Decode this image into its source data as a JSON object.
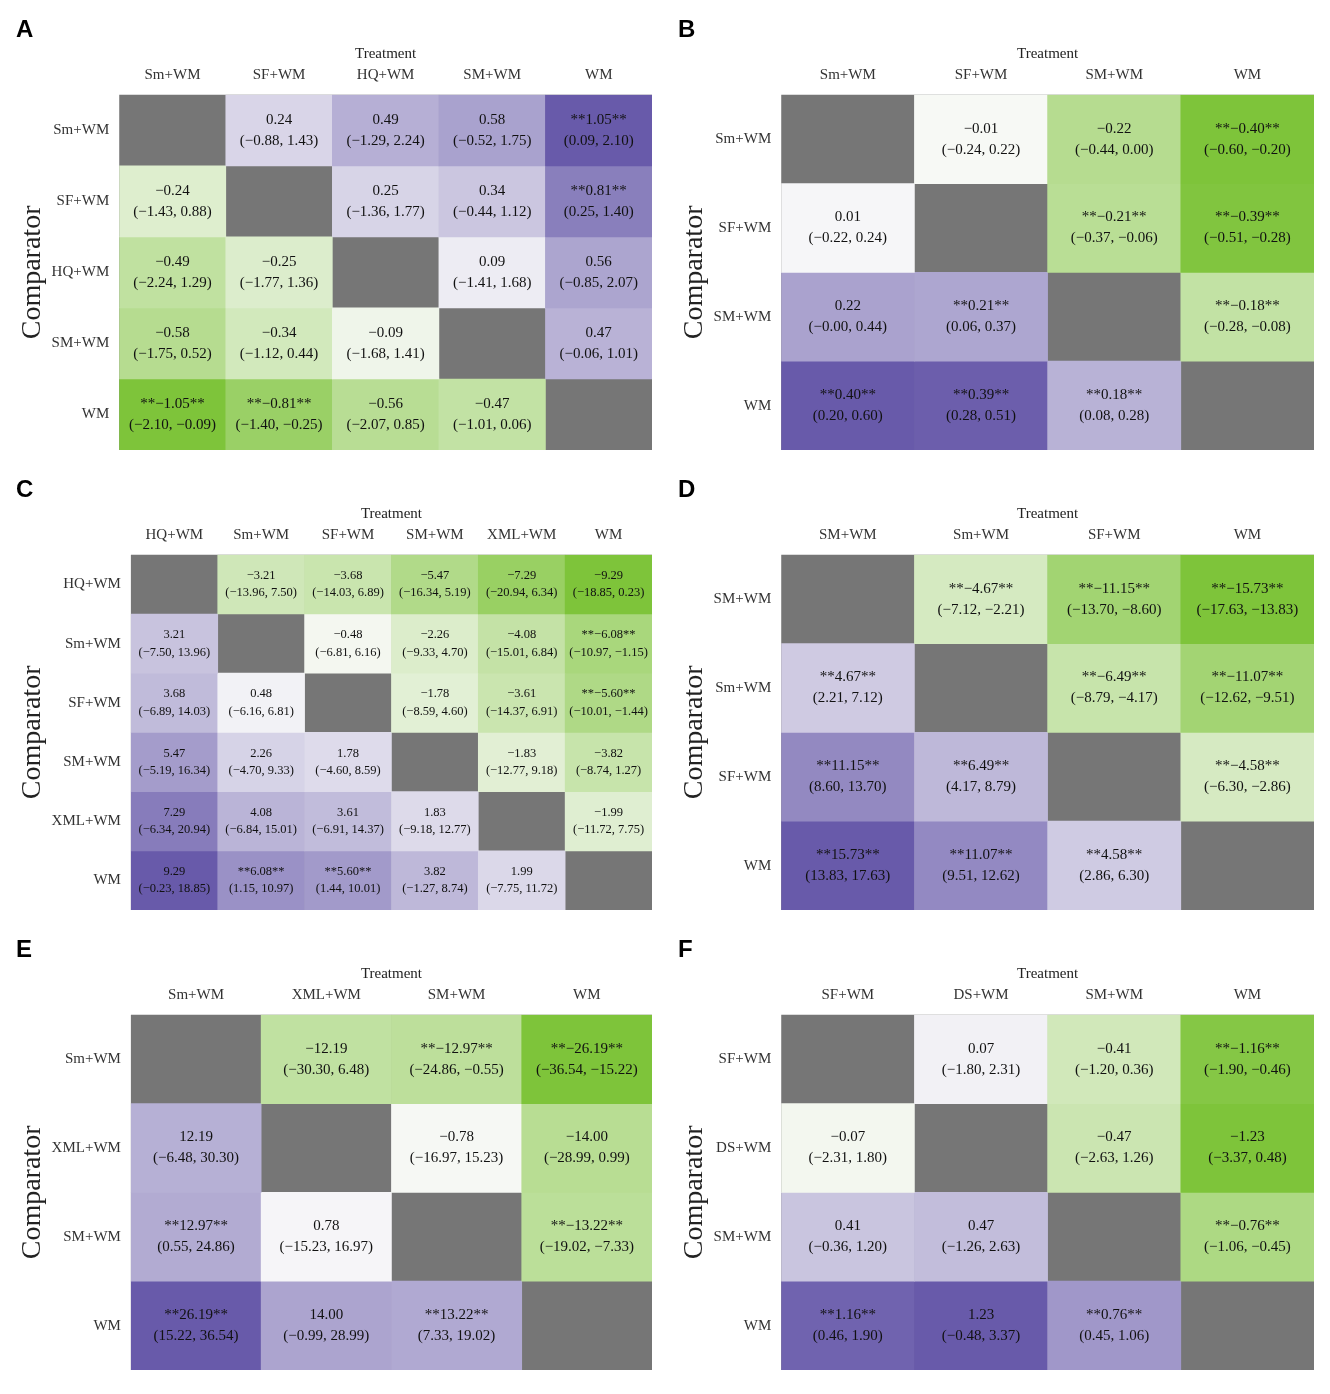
{
  "chart_data": [
    {
      "type": "heatmap",
      "title": "A",
      "xlabel": "Treatment",
      "ylabel": "Comparator",
      "categories": [
        "Sm+WM",
        "SF+WM",
        "HQ+WM",
        "SM+WM",
        "WM"
      ],
      "y_categories": [
        "Sm+WM",
        "SF+WM",
        "HQ+WM",
        "SM+WM",
        "WM"
      ],
      "cells": [
        [
          null,
          0.24,
          0.49,
          0.58,
          1.05
        ],
        [
          -0.24,
          null,
          0.25,
          0.34,
          0.81
        ],
        [
          -0.49,
          -0.25,
          null,
          0.09,
          0.56
        ],
        [
          -0.58,
          -0.34,
          -0.09,
          null,
          0.47
        ],
        [
          -1.05,
          -0.81,
          -0.56,
          -0.47,
          null
        ]
      ],
      "cell_labels": [
        [
          null,
          "0.24",
          "0.49",
          "0.58",
          "**1.05**"
        ],
        [
          "−0.24",
          null,
          "0.25",
          "0.34",
          "**0.81**"
        ],
        [
          "−0.49",
          "−0.25",
          null,
          "0.09",
          "0.56"
        ],
        [
          "−0.58",
          "−0.34",
          "−0.09",
          null,
          "0.47"
        ],
        [
          "**−1.05**",
          "**−0.81**",
          "−0.56",
          "−0.47",
          null
        ]
      ],
      "annotations": [
        "(−0.88, 1.43)",
        "(−1.29, 2.24)",
        "(−0.52, 1.75)",
        "(0.09, 2.10)",
        "(−1.43, 0.88)",
        "(−1.36, 1.77)",
        "(−0.44, 1.12)",
        "(0.25, 1.40)",
        "(−2.24, 1.29)",
        "(−1.77, 1.36)",
        "(−1.41, 1.68)",
        "(−0.85, 2.07)",
        "(−1.75, 0.52)",
        "(−1.12, 0.44)",
        "(−1.68, 1.41)",
        "(−0.06, 1.01)",
        "(−2.10, −0.09)",
        "(−1.40, −0.25)",
        "(−2.07, 0.85)",
        "(−1.01, 0.06)"
      ]
    },
    {
      "type": "heatmap",
      "title": "B",
      "xlabel": "Treatment",
      "ylabel": "Comparator",
      "categories": [
        "Sm+WM",
        "SF+WM",
        "SM+WM",
        "WM"
      ],
      "y_categories": [
        "Sm+WM",
        "SF+WM",
        "SM+WM",
        "WM"
      ],
      "cells": [
        [
          null,
          -0.01,
          -0.22,
          -0.4
        ],
        [
          0.01,
          null,
          -0.21,
          -0.39
        ],
        [
          0.22,
          0.21,
          null,
          -0.18
        ],
        [
          0.4,
          0.39,
          0.18,
          null
        ]
      ],
      "cell_labels": [
        [
          null,
          "−0.01",
          "−0.22",
          "**−0.40**"
        ],
        [
          "0.01",
          null,
          "**−0.21**",
          "**−0.39**"
        ],
        [
          "0.22",
          "**0.21**",
          null,
          "**−0.18**"
        ],
        [
          "**0.40**",
          "**0.39**",
          "**0.18**",
          null
        ]
      ],
      "annotations": [
        "(−0.24, 0.22)",
        "(−0.44, 0.00)",
        "(−0.60, −0.20)",
        "(−0.22, 0.24)",
        "(−0.37, −0.06)",
        "(−0.51, −0.28)",
        "(−0.00, 0.44)",
        "(0.06, 0.37)",
        "(−0.28, −0.08)",
        "(0.20, 0.60)",
        "(0.28, 0.51)",
        "(0.08, 0.28)"
      ]
    },
    {
      "type": "heatmap",
      "title": "C",
      "xlabel": "Treatment",
      "ylabel": "Comparator",
      "categories": [
        "HQ+WM",
        "Sm+WM",
        "SF+WM",
        "SM+WM",
        "XML+WM",
        "WM"
      ],
      "y_categories": [
        "HQ+WM",
        "Sm+WM",
        "SF+WM",
        "SM+WM",
        "XML+WM",
        "WM"
      ],
      "cells": [
        [
          null,
          -3.21,
          -3.68,
          -5.47,
          -7.29,
          -9.29
        ],
        [
          3.21,
          null,
          -0.48,
          -2.26,
          -4.08,
          -6.08
        ],
        [
          3.68,
          0.48,
          null,
          -1.78,
          -3.61,
          -5.6
        ],
        [
          5.47,
          2.26,
          1.78,
          null,
          -1.83,
          -3.82
        ],
        [
          7.29,
          4.08,
          3.61,
          1.83,
          null,
          -1.99
        ],
        [
          9.29,
          6.08,
          5.6,
          3.82,
          1.99,
          null
        ]
      ],
      "cell_labels": [
        [
          null,
          "−3.21",
          "−3.68",
          "−5.47",
          "−7.29",
          "−9.29"
        ],
        [
          "3.21",
          null,
          "−0.48",
          "−2.26",
          "−4.08",
          "**−6.08**"
        ],
        [
          "3.68",
          "0.48",
          null,
          "−1.78",
          "−3.61",
          "**−5.60**"
        ],
        [
          "5.47",
          "2.26",
          "1.78",
          null,
          "−1.83",
          "−3.82"
        ],
        [
          "7.29",
          "4.08",
          "3.61",
          "1.83",
          null,
          "−1.99"
        ],
        [
          "9.29",
          "**6.08**",
          "**5.60**",
          "3.82",
          "1.99",
          null
        ]
      ],
      "annotations": [
        "(−13.96, 7.50)",
        "(−14.03, 6.89)",
        "(−16.34, 5.19)",
        "(−20.94, 6.34)",
        "(−18.85, 0.23)",
        "(−7.50, 13.96)",
        "(−6.81, 6.16)",
        "(−9.33, 4.70)",
        "(−15.01, 6.84)",
        "(−10.97, −1.15)",
        "(−6.89, 14.03)",
        "(−6.16, 6.81)",
        "(−8.59, 4.60)",
        "(−14.37, 6.91)",
        "(−10.01, −1.44)",
        "(−5.19, 16.34)",
        "(−4.70, 9.33)",
        "(−4.60, 8.59)",
        "(−12.77, 9.18)",
        "(−8.74, 1.27)",
        "(−6.34, 20.94)",
        "(−6.84, 15.01)",
        "(−6.91, 14.37)",
        "(−9.18, 12.77)",
        "(−11.72, 7.75)",
        "(−0.23, 18.85)",
        "(1.15, 10.97)",
        "(1.44, 10.01)",
        "(−1.27, 8.74)",
        "(−7.75, 11.72)"
      ]
    },
    {
      "type": "heatmap",
      "title": "D",
      "xlabel": "Treatment",
      "ylabel": "Comparator",
      "categories": [
        "SM+WM",
        "Sm+WM",
        "SF+WM",
        "WM"
      ],
      "y_categories": [
        "SM+WM",
        "Sm+WM",
        "SF+WM",
        "WM"
      ],
      "cells": [
        [
          null,
          -4.67,
          -11.15,
          -15.73
        ],
        [
          4.67,
          null,
          -6.49,
          -11.07
        ],
        [
          11.15,
          6.49,
          null,
          -4.58
        ],
        [
          15.73,
          11.07,
          4.58,
          null
        ]
      ],
      "cell_labels": [
        [
          null,
          "**−4.67**",
          "**−11.15**",
          "**−15.73**"
        ],
        [
          "**4.67**",
          null,
          "**−6.49**",
          "**−11.07**"
        ],
        [
          "**11.15**",
          "**6.49**",
          null,
          "**−4.58**"
        ],
        [
          "**15.73**",
          "**11.07**",
          "**4.58**",
          null
        ]
      ],
      "annotations": [
        "(−7.12, −2.21)",
        "(−13.70, −8.60)",
        "(−17.63, −13.83)",
        "(2.21, 7.12)",
        "(−8.79, −4.17)",
        "(−12.62, −9.51)",
        "(8.60, 13.70)",
        "(4.17, 8.79)",
        "(−6.30, −2.86)",
        "(13.83, 17.63)",
        "(9.51, 12.62)",
        "(2.86, 6.30)"
      ]
    },
    {
      "type": "heatmap",
      "title": "E",
      "xlabel": "Treatment",
      "ylabel": "Comparator",
      "categories": [
        "Sm+WM",
        "XML+WM",
        "SM+WM",
        "WM"
      ],
      "y_categories": [
        "Sm+WM",
        "XML+WM",
        "SM+WM",
        "WM"
      ],
      "cells": [
        [
          null,
          -12.19,
          -12.97,
          -26.19
        ],
        [
          12.19,
          null,
          -0.78,
          -14.0
        ],
        [
          12.97,
          0.78,
          null,
          -13.22
        ],
        [
          26.19,
          14.0,
          13.22,
          null
        ]
      ],
      "cell_labels": [
        [
          null,
          "−12.19",
          "**−12.97**",
          "**−26.19**"
        ],
        [
          "12.19",
          null,
          "−0.78",
          "−14.00"
        ],
        [
          "**12.97**",
          "0.78",
          null,
          "**−13.22**"
        ],
        [
          "**26.19**",
          "14.00",
          "**13.22**",
          null
        ]
      ],
      "annotations": [
        "(−30.30, 6.48)",
        "(−24.86, −0.55)",
        "(−36.54, −15.22)",
        "(−6.48, 30.30)",
        "(−16.97, 15.23)",
        "(−28.99, 0.99)",
        "(0.55, 24.86)",
        "(−15.23, 16.97)",
        "(−19.02, −7.33)",
        "(15.22, 36.54)",
        "(−0.99, 28.99)",
        "(7.33, 19.02)"
      ]
    },
    {
      "type": "heatmap",
      "title": "F",
      "xlabel": "Treatment",
      "ylabel": "Comparator",
      "categories": [
        "SF+WM",
        "DS+WM",
        "SM+WM",
        "WM"
      ],
      "y_categories": [
        "SF+WM",
        "DS+WM",
        "SM+WM",
        "WM"
      ],
      "cells": [
        [
          null,
          0.07,
          -0.41,
          -1.16
        ],
        [
          -0.07,
          null,
          -0.47,
          -1.23
        ],
        [
          0.41,
          0.47,
          null,
          -0.76
        ],
        [
          1.16,
          1.23,
          0.76,
          null
        ]
      ],
      "cell_labels": [
        [
          null,
          "0.07",
          "−0.41",
          "**−1.16**"
        ],
        [
          "−0.07",
          null,
          "−0.47",
          "−1.23"
        ],
        [
          "0.41",
          "0.47",
          null,
          "**−0.76**"
        ],
        [
          "**1.16**",
          "1.23",
          "**0.76**",
          null
        ]
      ],
      "annotations": [
        "(−1.80, 2.31)",
        "(−1.20, 0.36)",
        "(−1.90, −0.46)",
        "(−2.31, 1.80)",
        "(−2.63, 1.26)",
        "(−3.37, 0.48)",
        "(−0.36, 1.20)",
        "(−1.26, 2.63)",
        "(−1.06, −0.45)",
        "(0.46, 1.90)",
        "(−0.48, 3.37)",
        "(0.45, 1.06)"
      ]
    }
  ]
}
